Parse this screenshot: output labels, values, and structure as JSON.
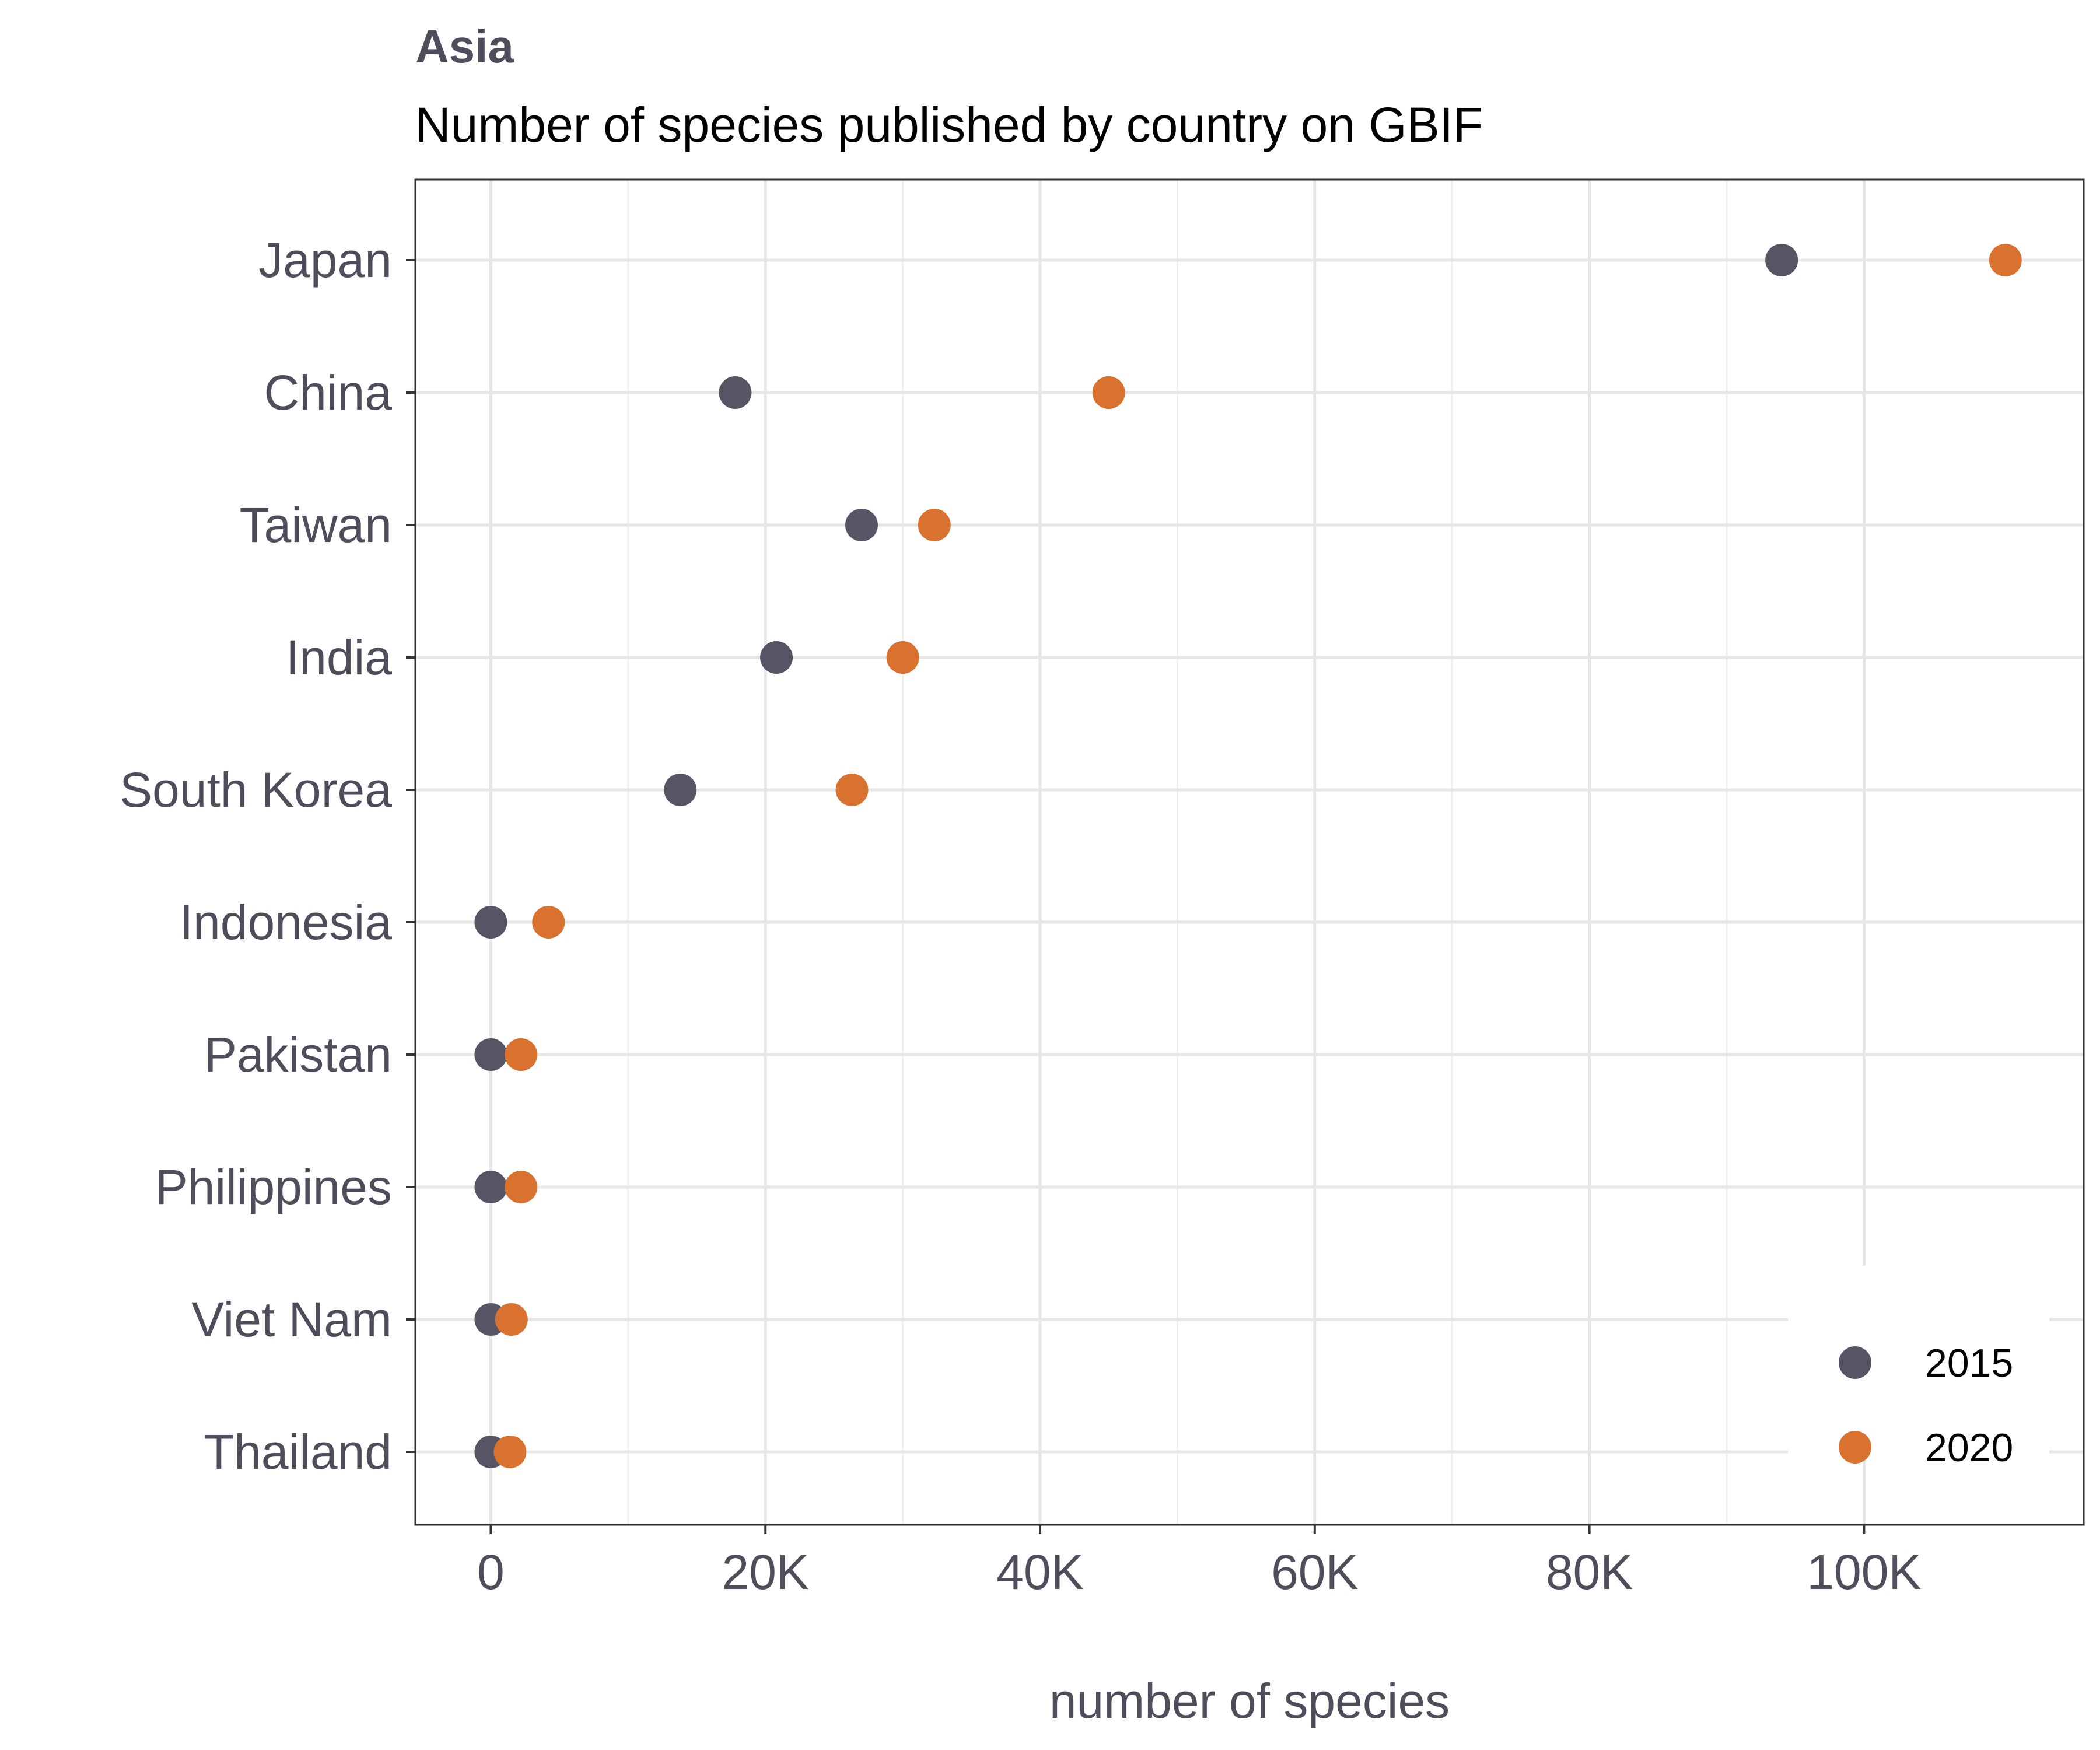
{
  "chart_data": {
    "type": "scatter",
    "title": "Asia",
    "subtitle": "Number of species published by country on GBIF",
    "xlabel": "number of species",
    "ylabel": "",
    "xlim": [
      -5500,
      116000
    ],
    "x_ticks": [
      0,
      20000,
      40000,
      60000,
      80000,
      100000
    ],
    "x_tick_labels": [
      "0",
      "20K",
      "40K",
      "60K",
      "80K",
      "100K"
    ],
    "categories": [
      "Japan",
      "China",
      "Taiwan",
      "India",
      "South Korea",
      "Indonesia",
      "Pakistan",
      "Philippines",
      "Viet Nam",
      "Thailand"
    ],
    "series": [
      {
        "name": "2015",
        "color": "#555565",
        "values": [
          94000,
          17800,
          27000,
          20800,
          13800,
          0,
          0,
          0,
          0,
          0
        ]
      },
      {
        "name": "2020",
        "color": "#d9722e",
        "values": [
          110300,
          45000,
          32300,
          30000,
          26300,
          4200,
          2200,
          2200,
          1500,
          1400
        ]
      }
    ],
    "grid": true,
    "legend_position": "bottom-right"
  }
}
